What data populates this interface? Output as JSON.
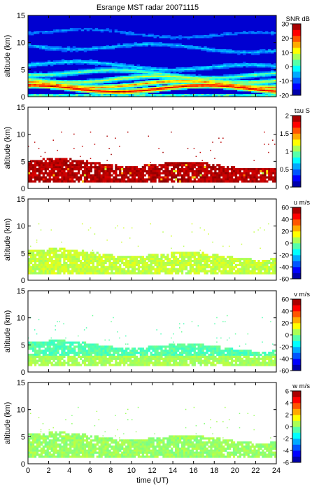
{
  "chart_data": {
    "type": "heatmap",
    "title": "Esrange MST radar 20071115",
    "xlabel": "time (UT)",
    "xlim": [
      0,
      24
    ],
    "x_ticks": [
      "0",
      "2",
      "4",
      "6",
      "8",
      "10",
      "12",
      "14",
      "16",
      "18",
      "20",
      "22",
      "24"
    ],
    "y_ticks": [
      "0",
      "5",
      "10",
      "15"
    ],
    "panels": [
      {
        "id": "snr",
        "ylabel": "altitude (km)",
        "ylim": [
          0,
          15
        ],
        "colorbar_label": "SNR dB",
        "clim": [
          -20,
          30
        ],
        "colorbar_ticks": [
          "-20",
          "-10",
          "0",
          "10",
          "20",
          "30"
        ],
        "description_layers": [
          {
            "alt_km": 1.5,
            "level": 0.9
          },
          {
            "alt_km": 2.3,
            "level": 0.72
          },
          {
            "alt_km": 3.2,
            "level": 0.55
          },
          {
            "alt_km": 4.6,
            "level": 0.45
          },
          {
            "alt_km": 6.0,
            "level": 0.32
          },
          {
            "alt_km": 9.5,
            "level": 0.28
          },
          {
            "alt_km": 12.0,
            "level": 0.22
          }
        ]
      },
      {
        "id": "tau",
        "ylabel": "altitude (km)",
        "ylim": [
          0,
          15
        ],
        "colorbar_label": "tau S",
        "clim": [
          0,
          2
        ],
        "colorbar_ticks": [
          "0",
          "0.5",
          "1",
          "1.5",
          "2"
        ],
        "band_km": [
          1.3,
          5.2
        ],
        "dominant_value": 1.9
      },
      {
        "id": "u",
        "ylabel": "altitude (km)",
        "ylim": [
          0,
          15
        ],
        "colorbar_label": "u m/s",
        "clim": [
          -60,
          60
        ],
        "colorbar_ticks": [
          "-60",
          "-40",
          "-20",
          "0",
          "20",
          "40",
          "60"
        ],
        "band_km": [
          1.2,
          5.5
        ],
        "dominant_value": 8
      },
      {
        "id": "v",
        "ylabel": "altitude (km)",
        "ylim": [
          0,
          15
        ],
        "colorbar_label": "v m/s",
        "clim": [
          -60,
          60
        ],
        "colorbar_ticks": [
          "-60",
          "-40",
          "-20",
          "0",
          "20",
          "40",
          "60"
        ],
        "band_km": [
          1.2,
          5.5
        ],
        "dominant_value": -5
      },
      {
        "id": "w",
        "ylabel": "altitude (km)",
        "ylim": [
          0,
          15
        ],
        "colorbar_label": "w m/s",
        "clim": [
          -6,
          6
        ],
        "colorbar_ticks": [
          "-6",
          "-4",
          "-2",
          "0",
          "2",
          "4",
          "6"
        ],
        "band_km": [
          1.0,
          5.5
        ],
        "dominant_value": 0.3
      }
    ]
  }
}
